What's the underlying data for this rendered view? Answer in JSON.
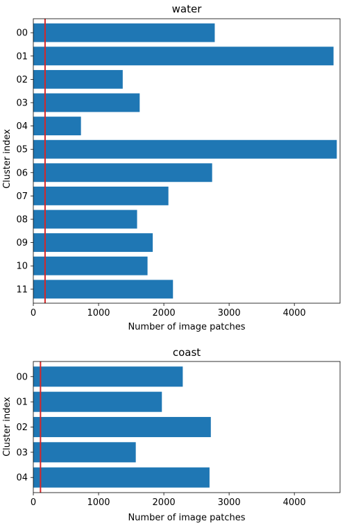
{
  "chart_data": [
    {
      "type": "bar",
      "orientation": "horizontal",
      "title": "water",
      "xlabel": "Number of image patches",
      "ylabel": "Cluster index",
      "categories": [
        "00",
        "01",
        "02",
        "03",
        "04",
        "05",
        "06",
        "07",
        "08",
        "09",
        "10",
        "11"
      ],
      "values": [
        2780,
        4600,
        1370,
        1630,
        730,
        4650,
        2740,
        2070,
        1590,
        1830,
        1750,
        2140
      ],
      "xlim": [
        0,
        4700
      ],
      "xticks": [
        0,
        1000,
        2000,
        3000,
        4000
      ],
      "reference_line": {
        "x": 180,
        "color": "#d62728"
      },
      "bar_color": "#1f77b4",
      "grid": false
    },
    {
      "type": "bar",
      "orientation": "horizontal",
      "title": "coast",
      "xlabel": "Number of image patches",
      "ylabel": "Cluster index",
      "categories": [
        "00",
        "01",
        "02",
        "03",
        "04"
      ],
      "values": [
        2290,
        1970,
        2720,
        1570,
        2700
      ],
      "xlim": [
        0,
        4700
      ],
      "xticks": [
        0,
        1000,
        2000,
        3000,
        4000
      ],
      "reference_line": {
        "x": 110,
        "color": "#d62728"
      },
      "bar_color": "#1f77b4",
      "grid": false
    }
  ]
}
